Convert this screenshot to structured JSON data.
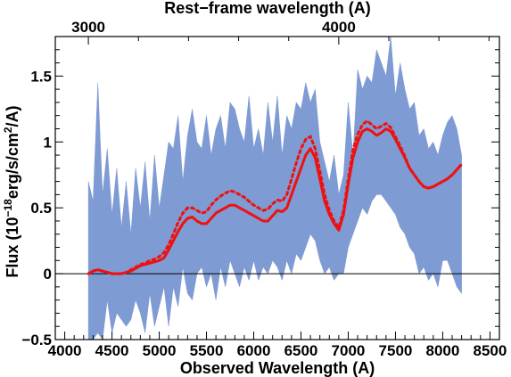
{
  "chart_data": {
    "type": "line",
    "title": "",
    "xlabel": "Observed Wavelength (A)",
    "ylabel": "Flux (10",
    "ylabel_exp": "−18",
    "ylabel_mid": "erg/s/cm",
    "ylabel_sq": "2",
    "ylabel_end": "/A)",
    "top_xlabel": "Rest−frame wavelength (A)",
    "xlim": [
      3900,
      8600
    ],
    "ylim": [
      -0.5,
      1.8
    ],
    "xticks": [
      4000,
      4500,
      5000,
      5500,
      6000,
      6500,
      7000,
      7500,
      8000,
      8500
    ],
    "xtick_labels": [
      "4000",
      "4500",
      "5000",
      "5500",
      "6000",
      "6500",
      "7000",
      "7500",
      "8000",
      "8500"
    ],
    "yticks": [
      -0.5,
      0,
      0.5,
      1,
      1.5
    ],
    "ytick_labels": [
      "−0.5",
      "0",
      "0.5",
      "1",
      "1.5"
    ],
    "top_ticks_obs": [
      4250,
      6900
    ],
    "top_tick_labels": [
      "3000",
      "4000"
    ],
    "zero_line": 0,
    "colors": {
      "noise_band": "#7f9bd4",
      "model": "#ee1111",
      "axes": "#000000"
    },
    "series": [
      {
        "style": "filled band",
        "x": [
          4250,
          4300,
          4350,
          4400,
          4450,
          4500,
          4550,
          4600,
          4650,
          4700,
          4750,
          4800,
          4850,
          4900,
          4950,
          5000,
          5050,
          5100,
          5150,
          5200,
          5250,
          5300,
          5350,
          5400,
          5450,
          5500,
          5550,
          5600,
          5650,
          5700,
          5750,
          5800,
          5850,
          5900,
          5950,
          6000,
          6050,
          6100,
          6150,
          6200,
          6250,
          6300,
          6350,
          6400,
          6450,
          6500,
          6550,
          6600,
          6650,
          6700,
          6750,
          6800,
          6850,
          6900,
          6950,
          7000,
          7050,
          7100,
          7150,
          7200,
          7250,
          7300,
          7350,
          7400,
          7450,
          7500,
          7550,
          7600,
          7650,
          7700,
          7750,
          7800,
          7850,
          7900,
          7950,
          8000,
          8050,
          8100,
          8150,
          8200
        ],
        "upper": [
          0.7,
          0.55,
          1.45,
          0.6,
          0.95,
          0.45,
          0.8,
          0.35,
          0.7,
          0.3,
          0.8,
          0.5,
          0.85,
          0.4,
          0.9,
          0.5,
          0.75,
          1.0,
          0.95,
          1.2,
          0.7,
          1.05,
          1.25,
          1.0,
          0.95,
          1.2,
          0.9,
          1.1,
          1.2,
          0.95,
          1.3,
          1.25,
          1.1,
          1.0,
          1.35,
          0.95,
          1.1,
          0.9,
          1.3,
          1.0,
          1.35,
          0.9,
          1.2,
          1.1,
          1.3,
          1.25,
          1.45,
          1.3,
          1.4,
          1.0,
          0.85,
          0.7,
          0.9,
          0.6,
          0.75,
          1.3,
          0.9,
          1.55,
          1.4,
          1.5,
          1.45,
          1.7,
          1.6,
          1.5,
          1.8,
          1.35,
          1.6,
          1.4,
          1.25,
          1.3,
          1.05,
          1.1,
          0.95,
          1.0,
          0.9,
          1.05,
          1.15,
          1.2,
          1.1,
          0.9
        ],
        "lower": [
          -0.5,
          -0.5,
          -0.45,
          -0.5,
          -0.2,
          -0.45,
          -0.3,
          -0.35,
          -0.4,
          -0.35,
          -0.2,
          -0.3,
          -0.45,
          -0.15,
          -0.4,
          -0.25,
          -0.1,
          -0.4,
          -0.1,
          -0.25,
          0.05,
          -0.15,
          -0.2,
          0.0,
          0.05,
          -0.1,
          0.0,
          -0.2,
          0.05,
          -0.1,
          0.1,
          0.0,
          -0.1,
          0.05,
          -0.05,
          0.1,
          -0.05,
          0.05,
          0.0,
          0.1,
          0.05,
          -0.05,
          0.1,
          0.0,
          0.15,
          0.1,
          0.2,
          0.3,
          0.25,
          0.1,
          0.0,
          0.05,
          -0.05,
          0.0,
          0.0,
          0.2,
          0.3,
          0.4,
          0.5,
          0.45,
          0.55,
          0.6,
          0.6,
          0.55,
          0.5,
          0.45,
          0.35,
          0.3,
          0.2,
          0.15,
          0.0,
          0.05,
          -0.05,
          0.0,
          -0.1,
          0.1,
          0.1,
          0.0,
          -0.1,
          -0.15
        ]
      },
      {
        "style": "solid",
        "x": [
          4250,
          4300,
          4350,
          4400,
          4450,
          4500,
          4550,
          4600,
          4650,
          4700,
          4750,
          4800,
          4850,
          4900,
          4950,
          5000,
          5050,
          5100,
          5150,
          5200,
          5250,
          5300,
          5350,
          5400,
          5450,
          5500,
          5550,
          5600,
          5650,
          5700,
          5750,
          5800,
          5850,
          5900,
          5950,
          6000,
          6050,
          6100,
          6150,
          6200,
          6250,
          6300,
          6350,
          6400,
          6450,
          6500,
          6550,
          6600,
          6650,
          6700,
          6750,
          6800,
          6850,
          6900,
          6950,
          7000,
          7050,
          7100,
          7150,
          7200,
          7250,
          7300,
          7350,
          7400,
          7450,
          7500,
          7550,
          7600,
          7650,
          7700,
          7750,
          7800,
          7850,
          7900,
          7950,
          8000,
          8050,
          8100,
          8150,
          8200
        ],
        "values": [
          0.0,
          0.02,
          0.03,
          0.02,
          0.01,
          0.0,
          0.0,
          0.0,
          0.01,
          0.02,
          0.04,
          0.06,
          0.07,
          0.08,
          0.09,
          0.1,
          0.12,
          0.18,
          0.25,
          0.32,
          0.38,
          0.42,
          0.43,
          0.4,
          0.38,
          0.38,
          0.42,
          0.46,
          0.48,
          0.5,
          0.52,
          0.52,
          0.5,
          0.48,
          0.46,
          0.44,
          0.42,
          0.4,
          0.4,
          0.44,
          0.48,
          0.47,
          0.5,
          0.6,
          0.7,
          0.8,
          0.9,
          0.95,
          0.88,
          0.72,
          0.55,
          0.45,
          0.38,
          0.33,
          0.45,
          0.68,
          0.88,
          1.0,
          1.08,
          1.1,
          1.08,
          1.05,
          1.07,
          1.1,
          1.08,
          1.02,
          0.95,
          0.88,
          0.8,
          0.75,
          0.7,
          0.66,
          0.65,
          0.66,
          0.68,
          0.7,
          0.72,
          0.75,
          0.79,
          0.83
        ]
      },
      {
        "style": "dotted",
        "x": [
          4250,
          4300,
          4350,
          4400,
          4450,
          4500,
          4550,
          4600,
          4650,
          4700,
          4750,
          4800,
          4850,
          4900,
          4950,
          5000,
          5050,
          5100,
          5150,
          5200,
          5250,
          5300,
          5350,
          5400,
          5450,
          5500,
          5550,
          5600,
          5650,
          5700,
          5750,
          5800,
          5850,
          5900,
          5950,
          6000,
          6050,
          6100,
          6150,
          6200,
          6250,
          6300,
          6350,
          6400,
          6450,
          6500,
          6550,
          6600,
          6650,
          6700,
          6750,
          6800,
          6850,
          6900,
          6950,
          7000,
          7050,
          7100,
          7150,
          7200,
          7250,
          7300,
          7350,
          7400,
          7450,
          7500,
          7550,
          7600,
          7650,
          7700,
          7750,
          7800,
          7850,
          7900,
          7950,
          8000,
          8050,
          8100,
          8150,
          8200
        ],
        "values": [
          0.0,
          0.02,
          0.03,
          0.02,
          0.01,
          0.0,
          0.0,
          0.0,
          0.01,
          0.03,
          0.05,
          0.07,
          0.08,
          0.1,
          0.11,
          0.13,
          0.16,
          0.22,
          0.3,
          0.39,
          0.46,
          0.5,
          0.5,
          0.48,
          0.46,
          0.47,
          0.52,
          0.56,
          0.59,
          0.61,
          0.63,
          0.62,
          0.6,
          0.58,
          0.55,
          0.52,
          0.5,
          0.48,
          0.49,
          0.53,
          0.56,
          0.55,
          0.6,
          0.72,
          0.84,
          0.95,
          1.02,
          1.04,
          0.95,
          0.78,
          0.6,
          0.48,
          0.4,
          0.35,
          0.48,
          0.72,
          0.94,
          1.06,
          1.13,
          1.16,
          1.13,
          1.1,
          1.12,
          1.14,
          1.11,
          1.04,
          0.97,
          0.89,
          0.8,
          0.75,
          0.7,
          0.66,
          0.65,
          0.66,
          0.68,
          0.7,
          0.72,
          0.75,
          0.79,
          0.83
        ]
      }
    ]
  }
}
